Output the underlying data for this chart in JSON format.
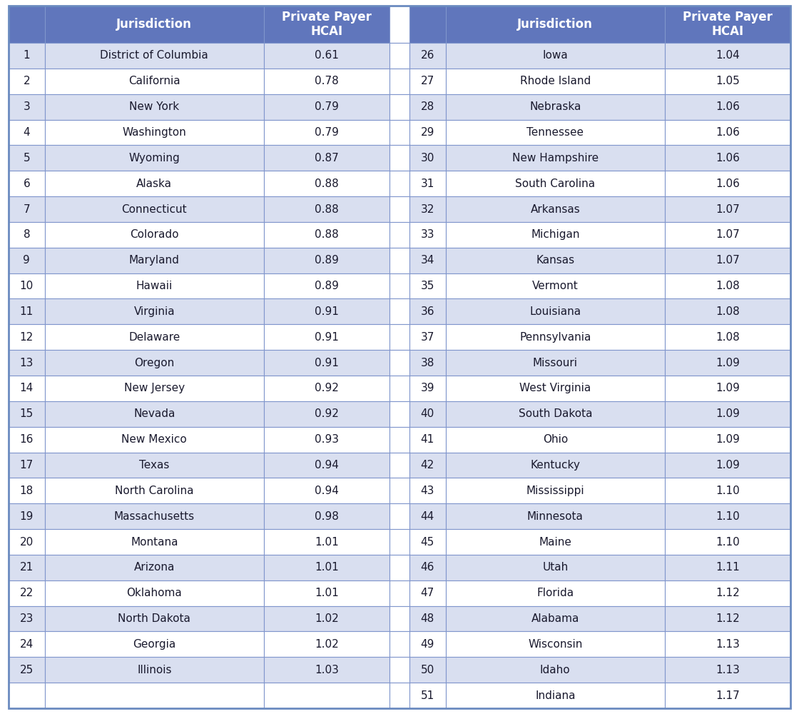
{
  "left_data": [
    [
      1,
      "District of Columbia",
      "0.61"
    ],
    [
      2,
      "California",
      "0.78"
    ],
    [
      3,
      "New York",
      "0.79"
    ],
    [
      4,
      "Washington",
      "0.79"
    ],
    [
      5,
      "Wyoming",
      "0.87"
    ],
    [
      6,
      "Alaska",
      "0.88"
    ],
    [
      7,
      "Connecticut",
      "0.88"
    ],
    [
      8,
      "Colorado",
      "0.88"
    ],
    [
      9,
      "Maryland",
      "0.89"
    ],
    [
      10,
      "Hawaii",
      "0.89"
    ],
    [
      11,
      "Virginia",
      "0.91"
    ],
    [
      12,
      "Delaware",
      "0.91"
    ],
    [
      13,
      "Oregon",
      "0.91"
    ],
    [
      14,
      "New Jersey",
      "0.92"
    ],
    [
      15,
      "Nevada",
      "0.92"
    ],
    [
      16,
      "New Mexico",
      "0.93"
    ],
    [
      17,
      "Texas",
      "0.94"
    ],
    [
      18,
      "North Carolina",
      "0.94"
    ],
    [
      19,
      "Massachusetts",
      "0.98"
    ],
    [
      20,
      "Montana",
      "1.01"
    ],
    [
      21,
      "Arizona",
      "1.01"
    ],
    [
      22,
      "Oklahoma",
      "1.01"
    ],
    [
      23,
      "North Dakota",
      "1.02"
    ],
    [
      24,
      "Georgia",
      "1.02"
    ],
    [
      25,
      "Illinois",
      "1.03"
    ]
  ],
  "right_data": [
    [
      26,
      "Iowa",
      "1.04"
    ],
    [
      27,
      "Rhode Island",
      "1.05"
    ],
    [
      28,
      "Nebraska",
      "1.06"
    ],
    [
      29,
      "Tennessee",
      "1.06"
    ],
    [
      30,
      "New Hampshire",
      "1.06"
    ],
    [
      31,
      "South Carolina",
      "1.06"
    ],
    [
      32,
      "Arkansas",
      "1.07"
    ],
    [
      33,
      "Michigan",
      "1.07"
    ],
    [
      34,
      "Kansas",
      "1.07"
    ],
    [
      35,
      "Vermont",
      "1.08"
    ],
    [
      36,
      "Louisiana",
      "1.08"
    ],
    [
      37,
      "Pennsylvania",
      "1.08"
    ],
    [
      38,
      "Missouri",
      "1.09"
    ],
    [
      39,
      "West Virginia",
      "1.09"
    ],
    [
      40,
      "South Dakota",
      "1.09"
    ],
    [
      41,
      "Ohio",
      "1.09"
    ],
    [
      42,
      "Kentucky",
      "1.09"
    ],
    [
      43,
      "Mississippi",
      "1.10"
    ],
    [
      44,
      "Minnesota",
      "1.10"
    ],
    [
      45,
      "Maine",
      "1.10"
    ],
    [
      46,
      "Utah",
      "1.11"
    ],
    [
      47,
      "Florida",
      "1.12"
    ],
    [
      48,
      "Alabama",
      "1.12"
    ],
    [
      49,
      "Wisconsin",
      "1.13"
    ],
    [
      50,
      "Idaho",
      "1.13"
    ],
    [
      51,
      "Indiana",
      "1.17"
    ]
  ],
  "header_bg": "#6076bc",
  "header_text": "#ffffff",
  "row_bg_light": "#ffffff",
  "row_bg_dark": "#d9dff0",
  "border_color": "#8096cc",
  "text_color": "#1a1a2e",
  "divider_bg": "#ffffff",
  "header_label1": "Jurisdiction",
  "header_label2": "Private Payer\nHCAI",
  "outer_border_color": "#6b8bc0",
  "data_fontsize": 11,
  "header_fontsize": 12
}
